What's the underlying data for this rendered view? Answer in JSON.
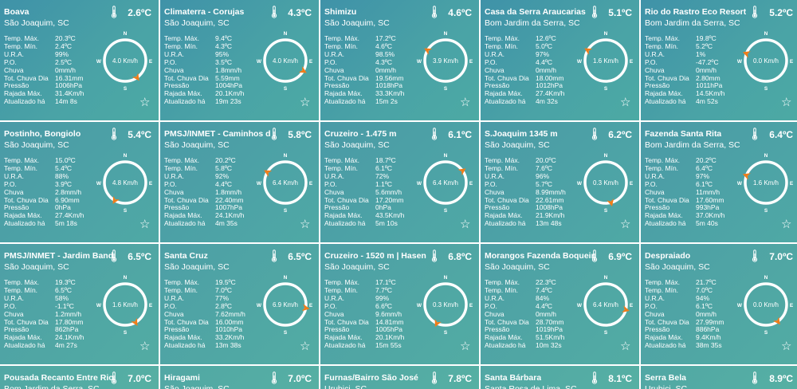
{
  "labels": {
    "temp_max": "Temp. Máx.",
    "temp_min": "Temp. Mín.",
    "ura": "U.R.A.",
    "po": "P.O.",
    "chuva": "Chuva",
    "tot_chuva": "Tot. Chuva Dia",
    "pressao": "Pressão",
    "rajada": "Rajada Máx.",
    "atualizado": "Atualizado há"
  },
  "compass_labels": {
    "n": "N",
    "s": "S",
    "e": "E",
    "w": "W"
  },
  "icons": {
    "thermometer": "thermometer-icon",
    "favorite": "star-outline-icon"
  },
  "colors": {
    "card_bg": "#4aa3a6",
    "arrow": "#f07d1a",
    "text": "#ffffff"
  },
  "stations": [
    {
      "name": "Boava",
      "city": "São Joaquim, SC",
      "temp": "2.6ºC",
      "max": "20.3ºC",
      "min": "2.4ºC",
      "ura": "99%",
      "po": "2.5ºC",
      "chuva": "0mm/h",
      "tot": "16.31mm",
      "pressao": "1006hPa",
      "rajada": "31.4Km/h",
      "updated": "14m 8s",
      "wind": "4.0 Km/h",
      "dir": 145
    },
    {
      "name": "Climaterra - Corujas",
      "city": "São Joaquim, SC",
      "temp": "4.3ºC",
      "max": "9.4ºC",
      "min": "4.3ºC",
      "ura": "95%",
      "po": "3.5ºC",
      "chuva": "1.8mm/h",
      "tot": "5.59mm",
      "pressao": "1004hPa",
      "rajada": "20.1Km/h",
      "updated": "19m 23s",
      "wind": "4.0 Km/h",
      "dir": 120
    },
    {
      "name": "Shimizu",
      "city": "São Joaquim, SC",
      "temp": "4.6ºC",
      "max": "17.2ºC",
      "min": "4.6ºC",
      "ura": "98.5%",
      "po": "4.3ºC",
      "chuva": "0mm/h",
      "tot": "19.56mm",
      "pressao": "1018hPa",
      "rajada": "33.3Km/h",
      "updated": "15m 2s",
      "wind": "3.9 Km/h",
      "dir": 300
    },
    {
      "name": "Casa da Serra Araucarias",
      "city": "Bom Jardim da Serra, SC",
      "temp": "5.1ºC",
      "max": "12.6ºC",
      "min": "5.0ºC",
      "ura": "97%",
      "po": "4.4ºC",
      "chuva": "0mm/h",
      "tot": "18.00mm",
      "pressao": "1012hPa",
      "rajada": "27.4Km/h",
      "updated": "4m 32s",
      "wind": "1.6 Km/h",
      "dir": 300
    },
    {
      "name": "Rio do Rastro Eco Resort",
      "city": "Bom Jardim da Serra, SC",
      "temp": "5.2ºC",
      "max": "19.8ºC",
      "min": "5.2ºC",
      "ura": "1%",
      "po": "-47.2ºC",
      "chuva": "0mm/h",
      "tot": "2.80mm",
      "pressao": "1011hPa",
      "rajada": "14.5Km/h",
      "updated": "4m 52s",
      "wind": "0.0 Km/h",
      "dir": 290
    },
    {
      "name": "Postinho, Bongiolo",
      "city": "São Joaquim, SC",
      "temp": "5.4ºC",
      "max": "15.0ºC",
      "min": "5.4ºC",
      "ura": "88%",
      "po": "3.9ºC",
      "chuva": "2.8mm/h",
      "tot": "6.90mm",
      "pressao": "0hPa",
      "rajada": "27.4Km/h",
      "updated": "5m 18s",
      "wind": "4.8 Km/h",
      "dir": 210
    },
    {
      "name": "PMSJ/INMET - Caminhos d",
      "city": "São Joaquim, SC",
      "temp": "5.8ºC",
      "max": "20.2ºC",
      "min": "5.8ºC",
      "ura": "92%",
      "po": "4.4ºC",
      "chuva": "1.8mm/h",
      "tot": "22.40mm",
      "pressao": "1007hPa",
      "rajada": "24.1Km/h",
      "updated": "4m 35s",
      "wind": "6.4 Km/h",
      "dir": 300
    },
    {
      "name": "Cruzeiro - 1.475 m",
      "city": "São Joaquim, SC",
      "temp": "6.1ºC",
      "max": "18.7ºC",
      "min": "6.1ºC",
      "ura": "72%",
      "po": "1.1ºC",
      "chuva": "5.6mm/h",
      "tot": "17.20mm",
      "pressao": "0hPa",
      "rajada": "43.5Km/h",
      "updated": "5m 10s",
      "wind": "6.4 Km/h",
      "dir": 55
    },
    {
      "name": "S.Joaquim 1345 m",
      "city": "São Joaquim, SC",
      "temp": "6.2ºC",
      "max": "20.0ºC",
      "min": "7.6ºC",
      "ura": "96%",
      "po": "5.7ºC",
      "chuva": "8.99mm/h",
      "tot": "22.61mm",
      "pressao": "1008hPa",
      "rajada": "21.9Km/h",
      "updated": "13m 48s",
      "wind": "0.3 Km/h",
      "dir": 165
    },
    {
      "name": "Fazenda Santa Rita",
      "city": "Bom Jardim da Serra, SC",
      "temp": "6.4ºC",
      "max": "20.2ºC",
      "min": "6.4ºC",
      "ura": "97%",
      "po": "6.1ºC",
      "chuva": "11mm/h",
      "tot": "17.60mm",
      "pressao": "993hPa",
      "rajada": "37.0Km/h",
      "updated": "5m 40s",
      "wind": "1.6 Km/h",
      "dir": 290
    },
    {
      "name": "PMSJ/INMET - Jardim Band",
      "city": "São Joaquim, SC",
      "temp": "6.5ºC",
      "max": "19.3ºC",
      "min": "6.5ºC",
      "ura": "58%",
      "po": "-1.1ºC",
      "chuva": "1.2mm/h",
      "tot": "17.80mm",
      "pressao": "862hPa",
      "rajada": "24.1Km/h",
      "updated": "4m 27s",
      "wind": "1.6 Km/h",
      "dir": 150
    },
    {
      "name": "Santa Cruz",
      "city": "São Joaquim, SC",
      "temp": "6.5ºC",
      "max": "19.5ºC",
      "min": "7.0ºC",
      "ura": "77%",
      "po": "2.8ºC",
      "chuva": "7.62mm/h",
      "tot": "16.00mm",
      "pressao": "1010hPa",
      "rajada": "33.2Km/h",
      "updated": "13m 38s",
      "wind": "6.9 Km/h",
      "dir": 100
    },
    {
      "name": "Cruzeiro - 1520 m | Hasen",
      "city": "São Joaquim, SC",
      "temp": "6.8ºC",
      "max": "17.1ºC",
      "min": "7.7ºC",
      "ura": "99%",
      "po": "6.6ºC",
      "chuva": "9.6mm/h",
      "tot": "14.81mm",
      "pressao": "1005hPa",
      "rajada": "20.1Km/h",
      "updated": "15m 55s",
      "wind": "0.3 Km/h",
      "dir": 205
    },
    {
      "name": "Morangos Fazenda Boqueir",
      "city": "São Joaquim, SC",
      "temp": "6.9ºC",
      "max": "22.3ºC",
      "min": "7.4ºC",
      "ura": "84%",
      "po": "4.4ºC",
      "chuva": "0mm/h",
      "tot": "28.70mm",
      "pressao": "1019hPa",
      "rajada": "51.5Km/h",
      "updated": "10m 32s",
      "wind": "6.4 Km/h",
      "dir": 105
    },
    {
      "name": "Despraiado",
      "city": "São Joaquim, SC",
      "temp": "7.0ºC",
      "max": "21.7ºC",
      "min": "7.0ºC",
      "ura": "94%",
      "po": "6.1ºC",
      "chuva": "0mm/h",
      "tot": "27.99mm",
      "pressao": "886hPa",
      "rajada": "9.4Km/h",
      "updated": "38m 35s",
      "wind": "0.0 Km/h",
      "dir": 145
    },
    {
      "name": "Pousada Recanto Entre Rio",
      "city": "Bom Jardim da Serra, SC",
      "temp": "7.0ºC"
    },
    {
      "name": "Hiragami",
      "city": "São Joaquim, SC",
      "temp": "7.0ºC"
    },
    {
      "name": "Furnas/Bairro São José",
      "city": "Urubici, SC",
      "temp": "7.8ºC"
    },
    {
      "name": "Santa Bárbara",
      "city": "Santa Rosa de Lima, SC",
      "temp": "8.1ºC"
    },
    {
      "name": "Serra Bela",
      "city": "Urubici, SC",
      "temp": "8.9ºC"
    }
  ]
}
